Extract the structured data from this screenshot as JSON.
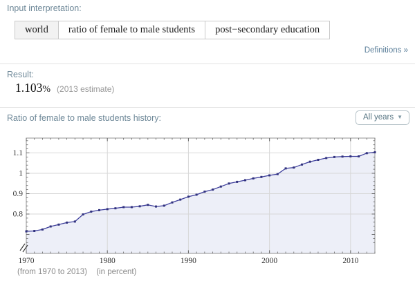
{
  "input_pod": {
    "title": "Input interpretation:",
    "cells": [
      "world",
      "ratio of female to male students",
      "post−secondary education"
    ]
  },
  "definitions_link": "Definitions »",
  "result_pod": {
    "title": "Result:",
    "value": "1.103",
    "unit": "%",
    "note": "(2013 estimate)"
  },
  "history_pod": {
    "title": "Ratio of female to male students history:",
    "dropdown_label": "All years",
    "dropdown_arrow": "▼",
    "caption_range": "(from 1970 to 2013)",
    "caption_unit": "(in percent)"
  },
  "chart_data": {
    "type": "area",
    "title": "Ratio of female to male students history",
    "xlabel": "",
    "ylabel": "(in percent)",
    "x": [
      1970,
      1971,
      1972,
      1973,
      1974,
      1975,
      1976,
      1977,
      1978,
      1979,
      1980,
      1981,
      1982,
      1983,
      1984,
      1985,
      1986,
      1987,
      1988,
      1989,
      1990,
      1991,
      1992,
      1993,
      1994,
      1995,
      1996,
      1997,
      1998,
      1999,
      2000,
      2001,
      2002,
      2003,
      2004,
      2005,
      2006,
      2007,
      2008,
      2009,
      2010,
      2011,
      2012,
      2013
    ],
    "values": [
      0.715,
      0.717,
      0.724,
      0.739,
      0.748,
      0.758,
      0.763,
      0.798,
      0.812,
      0.819,
      0.824,
      0.828,
      0.834,
      0.834,
      0.838,
      0.845,
      0.837,
      0.841,
      0.857,
      0.871,
      0.885,
      0.895,
      0.91,
      0.92,
      0.935,
      0.95,
      0.958,
      0.966,
      0.975,
      0.982,
      0.99,
      0.996,
      1.024,
      1.028,
      1.043,
      1.057,
      1.066,
      1.075,
      1.08,
      1.082,
      1.083,
      1.083,
      1.099,
      1.103
    ],
    "xticks": {
      "values": [
        1970,
        1980,
        1990,
        2000,
        2010
      ],
      "labels": [
        "1970",
        "1980",
        "1990",
        "2000",
        "2010"
      ]
    },
    "yticks": {
      "values": [
        0.8,
        0.9,
        1.0,
        1.1
      ],
      "labels": [
        "0.8",
        "0.9",
        "1",
        "1.1"
      ]
    },
    "xlim": [
      1970,
      2013
    ],
    "ylim_display": [
      0.6,
      1.17
    ],
    "axis_break": true,
    "grid": true,
    "legend": "none",
    "colors": {
      "line": "#3e3f9c",
      "marker": "#31327e",
      "fill": "#edeff8",
      "grid": "#d7d7d7",
      "frame": "#909090",
      "tick": "#666666"
    }
  }
}
